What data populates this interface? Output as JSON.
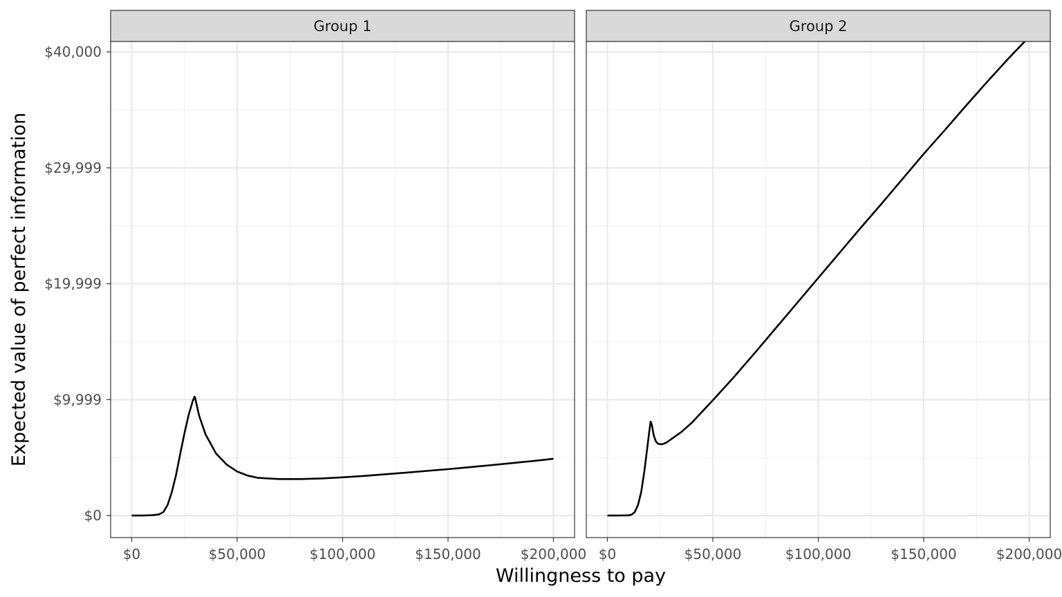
{
  "chart_data": {
    "type": "line",
    "xlabel": "Willingness to pay",
    "ylabel": "Expected value of perfect information",
    "xlim": [
      -10000,
      210000
    ],
    "ylim": [
      -1900,
      40900
    ],
    "x_ticks": [
      0,
      50000,
      100000,
      150000,
      200000
    ],
    "x_tick_labels": [
      "$0",
      "$50,000",
      "$100,000",
      "$150,000",
      "$200,000"
    ],
    "y_ticks": [
      0,
      9999,
      19999,
      29999,
      40000
    ],
    "y_tick_labels": [
      "$0",
      "$9,999",
      "$19,999",
      "$29,999",
      "$40,000"
    ],
    "grid": true,
    "facets": [
      {
        "label": "Group 1",
        "series": [
          {
            "x": [
              0,
              5000,
              10000,
              13000,
              15000,
              17000,
              19000,
              21000,
              23000,
              25000,
              27000,
              29000,
              29800,
              30000,
              32000,
              35000,
              40000,
              45000,
              50000,
              55000,
              60000,
              70000,
              80000,
              90000,
              100000,
              110000,
              120000,
              130000,
              140000,
              150000,
              160000,
              170000,
              180000,
              190000,
              200000
            ],
            "y": [
              0,
              0,
              30,
              100,
              300,
              900,
              2000,
              3500,
              5300,
              7100,
              8700,
              9900,
              10250,
              10200,
              8600,
              7000,
              5350,
              4400,
              3800,
              3450,
              3250,
              3150,
              3150,
              3200,
              3300,
              3420,
              3560,
              3700,
              3850,
              4000,
              4170,
              4340,
              4520,
              4700,
              4900
            ]
          }
        ]
      },
      {
        "label": "Group 2",
        "series": [
          {
            "x": [
              0,
              5000,
              10000,
              11500,
              13000,
              14500,
              16000,
              17500,
              19000,
              20000,
              20500,
              21000,
              22000,
              23000,
              24000,
              25000,
              26000,
              27000,
              28000,
              30000,
              35000,
              40000,
              50000,
              60000,
              70000,
              80000,
              90000,
              100000,
              110000,
              120000,
              130000,
              140000,
              150000,
              160000,
              170000,
              180000,
              190000,
              200000
            ],
            "y": [
              0,
              0,
              20,
              80,
              300,
              900,
              2000,
              3800,
              6000,
              7450,
              8100,
              7900,
              6900,
              6400,
              6200,
              6150,
              6160,
              6220,
              6300,
              6550,
              7200,
              8000,
              9950,
              11950,
              14050,
              16200,
              18350,
              20500,
              22650,
              24800,
              26900,
              29050,
              31200,
              33250,
              35350,
              37400,
              39400,
              41300
            ]
          }
        ]
      }
    ]
  }
}
